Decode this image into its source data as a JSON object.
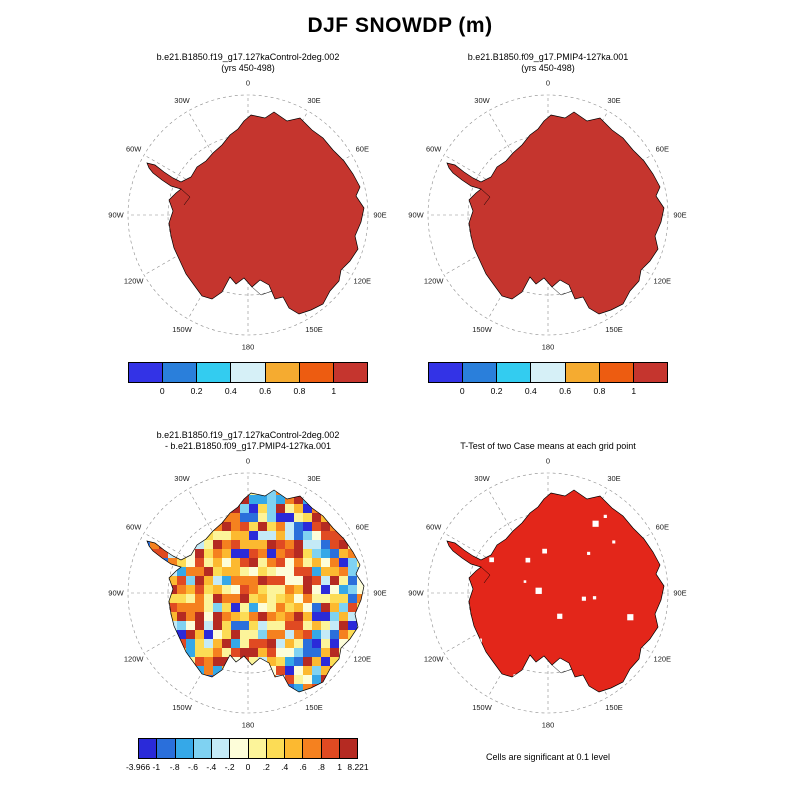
{
  "title": "DJF SNOWDP (m)",
  "panels": {
    "top_left": {
      "title_line1": "b.e21.B1850.f19_g17.127kaControl-2deg.002",
      "title_line2": "(yrs 450-498)"
    },
    "top_right": {
      "title_line1": "b.e21.B1850.f09_g17.PMIP4-127ka.001",
      "title_line2": "(yrs 450-498)"
    },
    "bottom_left": {
      "title_line1": "b.e21.B1850.f19_g17.127kaControl-2deg.002",
      "title_line2": "- b.e21.B1850.f09_g17.PMIP4-127ka.001"
    },
    "bottom_right": {
      "title": "T-Test of two Case means at each grid point",
      "caption": "Cells are significant at 0.1 level"
    }
  },
  "map": {
    "lon_labels": [
      "0",
      "30E",
      "60E",
      "90E",
      "120E",
      "150E",
      "180",
      "150W",
      "120W",
      "90W",
      "60W",
      "30W"
    ],
    "land_fill": "#c5352e",
    "ttest_fill": "#e3261a",
    "coastline": "#000000",
    "grid_color": "#8a8a8a"
  },
  "chart_data": [
    {
      "type": "heatmap",
      "panel": "top_left",
      "projection": "south_polar_stereographic",
      "title": "b.e21.B1850.f19_g17.127kaControl-2deg.002",
      "subtitle": "(yrs 450-498)",
      "variable": "DJF SNOWDP (m)",
      "colorbar": {
        "tick_labels": [
          "0",
          "0.2",
          "0.4",
          "0.6",
          "0.8",
          "1"
        ],
        "colors": [
          "#3333e6",
          "#2a7fdb",
          "#33ccf0",
          "#d6f0f7",
          "#f5ab30",
          "#ed5c11",
          "#c5352e"
        ]
      },
      "summary": "entire Antarctic continent in highest bin (> 1 m)"
    },
    {
      "type": "heatmap",
      "panel": "top_right",
      "projection": "south_polar_stereographic",
      "title": "b.e21.B1850.f09_g17.PMIP4-127ka.001",
      "subtitle": "(yrs 450-498)",
      "variable": "DJF SNOWDP (m)",
      "colorbar": {
        "tick_labels": [
          "0",
          "0.2",
          "0.4",
          "0.6",
          "0.8",
          "1"
        ],
        "colors": [
          "#3333e6",
          "#2a7fdb",
          "#33ccf0",
          "#d6f0f7",
          "#f5ab30",
          "#ed5c11",
          "#c5352e"
        ]
      },
      "summary": "entire Antarctic continent in highest bin (> 1 m)"
    },
    {
      "type": "heatmap",
      "panel": "bottom_left",
      "projection": "south_polar_stereographic",
      "title": "b.e21.B1850.f19_g17.127kaControl-2deg.002 - b.e21.B1850.f09_g17.PMIP4-127ka.001",
      "variable": "difference in DJF SNOWDP (m)",
      "min": -3.966,
      "max": 8.221,
      "colorbar": {
        "tick_labels": [
          "-3.966",
          "-1",
          "-.8",
          "-.6",
          "-.4",
          "-.2",
          "0",
          ".2",
          ".4",
          ".6",
          ".8",
          "1",
          "8.221"
        ],
        "colors": [
          "#2a2ad9",
          "#2a6fdb",
          "#35a8e8",
          "#7fd2f2",
          "#c4eaf7",
          "#fdfdd9",
          "#fcf49a",
          "#fcdc55",
          "#fcb930",
          "#f5811f",
          "#e04a22",
          "#b52a22"
        ]
      },
      "summary": "mottled positive and negative differences over the continent, mostly between -1 and 1 m"
    },
    {
      "type": "heatmap",
      "panel": "bottom_right",
      "projection": "south_polar_stereographic",
      "title": "T-Test of two Case means at each grid point",
      "caption": "Cells are significant at 0.1 level",
      "summary": "significant cells shown in red over nearly all of Antarctica"
    }
  ]
}
